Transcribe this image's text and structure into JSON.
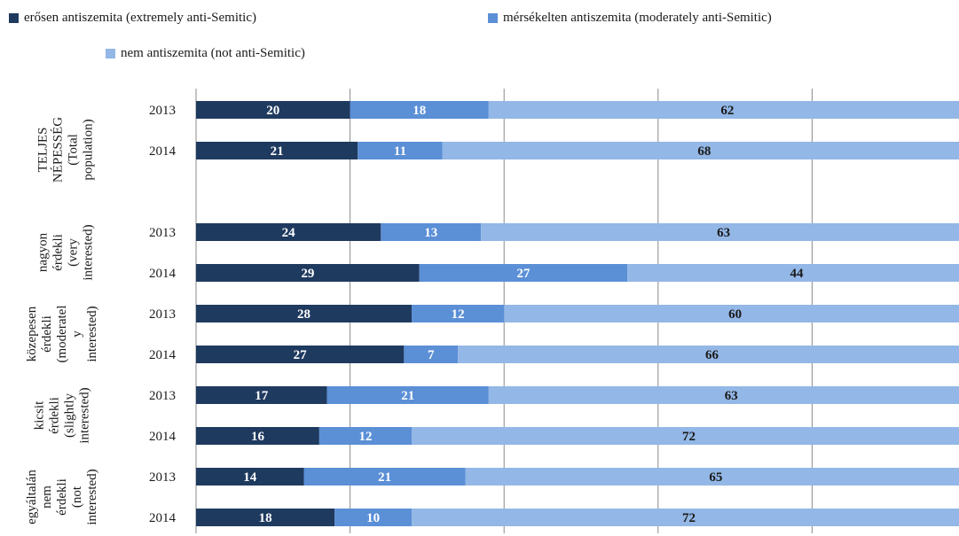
{
  "chart_data": {
    "type": "bar",
    "orientation": "horizontal",
    "stacked": true,
    "xlim": [
      0,
      100
    ],
    "grid": true,
    "legend_position": "top-left",
    "series": [
      {
        "name": "erősen antiszemita (extremely anti-Semitic)",
        "color": "#1f3a5f",
        "label_color": "#ffffff",
        "values": [
          20,
          21,
          24,
          29,
          28,
          27,
          17,
          16,
          14,
          18
        ]
      },
      {
        "name": "mérsékelten antiszemita (moderately anti-Semitic)",
        "color": "#5b8fd6",
        "label_color": "#ffffff",
        "values": [
          18,
          11,
          13,
          27,
          12,
          7,
          21,
          12,
          21,
          10
        ]
      },
      {
        "name": "nem antiszemita (not anti-Semitic)",
        "color": "#93b7e6",
        "label_color": "#1a1a1a",
        "values": [
          62,
          68,
          63,
          44,
          60,
          66,
          63,
          72,
          65,
          72
        ]
      }
    ],
    "groups": [
      {
        "lines": [
          "TELJES",
          "NÉPESSÉG",
          "(Total",
          "population)"
        ],
        "years": [
          "2013",
          "2014"
        ],
        "rows": [
          0,
          1
        ]
      },
      {
        "lines": [
          "nagyon",
          "érdekli",
          "(very",
          "interested)"
        ],
        "years": [
          "2013",
          "2014"
        ],
        "rows": [
          2,
          3
        ]
      },
      {
        "lines": [
          "közepesen",
          "érdekli",
          "(moderatel",
          "y",
          "interested)"
        ],
        "years": [
          "2013",
          "2014"
        ],
        "rows": [
          4,
          5
        ]
      },
      {
        "lines": [
          "kicsit",
          "érdekli",
          "(slightly",
          "interested)"
        ],
        "years": [
          "2013",
          "2014"
        ],
        "rows": [
          6,
          7
        ]
      },
      {
        "lines": [
          "egyáltalán",
          "nem",
          "érdekli",
          "(not",
          "interested)"
        ],
        "years": [
          "2013",
          "2014"
        ],
        "rows": [
          8,
          9
        ]
      }
    ]
  }
}
